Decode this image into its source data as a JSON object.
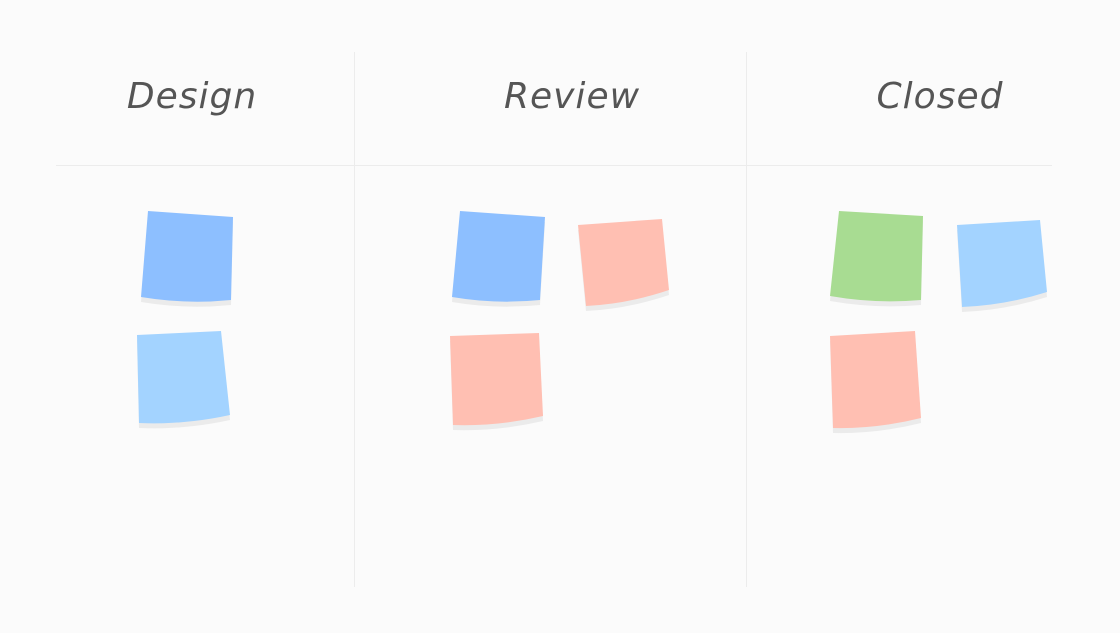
{
  "board": {
    "columns": [
      {
        "title": "Design",
        "notes": [
          "blue",
          "light-blue"
        ]
      },
      {
        "title": "Review",
        "notes": [
          "blue",
          "salmon",
          "salmon"
        ]
      },
      {
        "title": "Closed",
        "notes": [
          "green",
          "light-blue",
          "salmon"
        ]
      }
    ]
  },
  "colors": {
    "blue": "#8dbfff",
    "light-blue": "#a3d3ff",
    "salmon": "#ffbfb2",
    "green": "#a8dc92",
    "shadow": "#ebebeb",
    "background": "#fbfbfb",
    "header_text": "#555555"
  }
}
